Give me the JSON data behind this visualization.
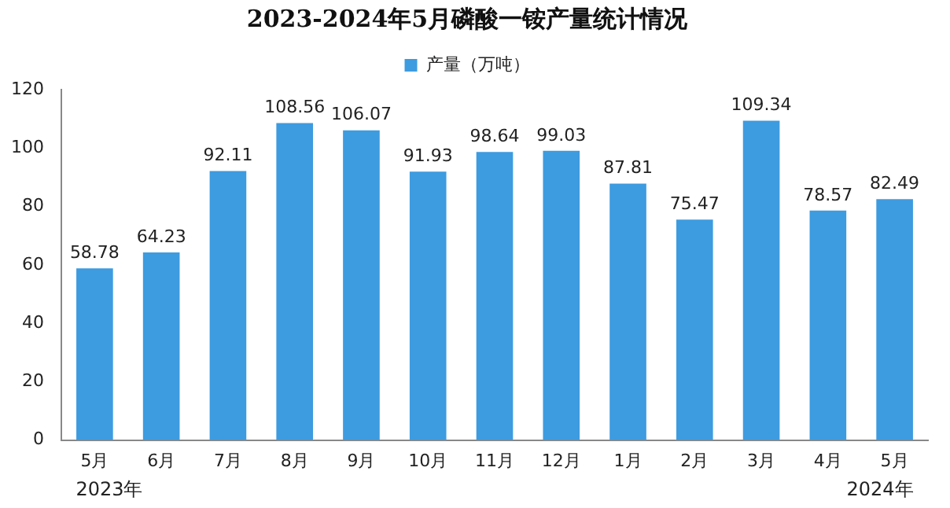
{
  "chart_data": {
    "type": "bar",
    "title": "2023-2024年5月磷酸一铵产量统计情况",
    "categories": [
      "5月",
      "6月",
      "7月",
      "8月",
      "9月",
      "10月",
      "11月",
      "12月",
      "1月",
      "2月",
      "3月",
      "4月",
      "5月"
    ],
    "series": [
      {
        "name": "产量（万吨）",
        "color": "#3d9be0",
        "values": [
          58.78,
          64.23,
          92.11,
          108.56,
          106.07,
          91.93,
          98.64,
          99.03,
          87.81,
          75.47,
          109.34,
          78.57,
          82.49
        ]
      }
    ],
    "ylim": [
      0,
      120
    ],
    "yticks": [
      0,
      20,
      40,
      60,
      80,
      100,
      120
    ],
    "grid": false,
    "legend": "top",
    "data_labels": true,
    "annotations": [
      "2023年",
      "2024年"
    ]
  }
}
